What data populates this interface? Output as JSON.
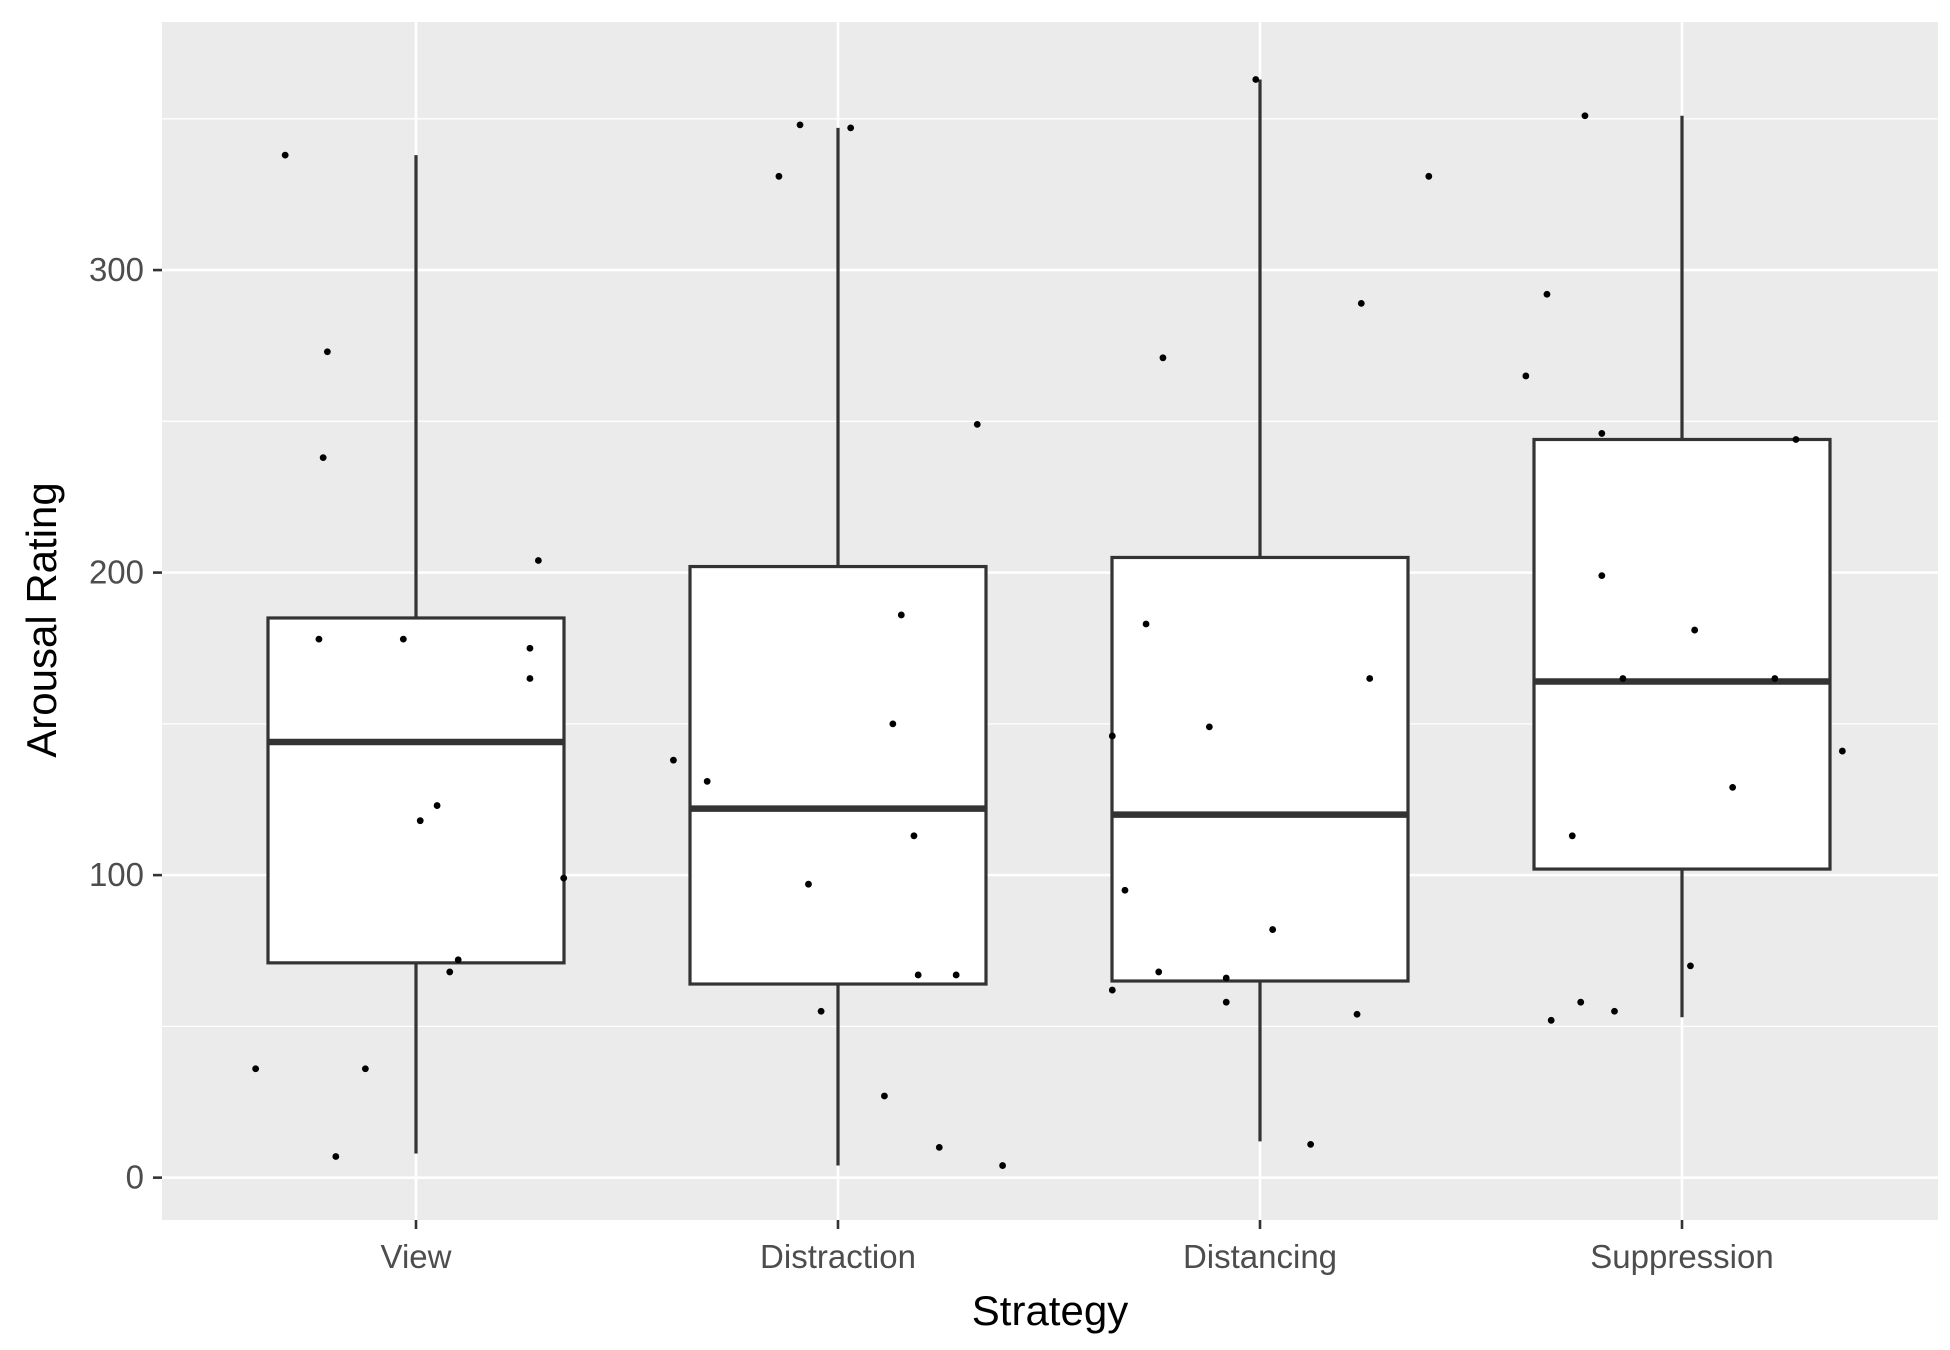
{
  "chart_data": {
    "type": "boxplot",
    "title": "",
    "xlabel": "Strategy",
    "ylabel": "Arousal Rating",
    "ylim": [
      -14,
      382
    ],
    "yticks": [
      0,
      100,
      200,
      300
    ],
    "ytick_labels": [
      "0",
      "100",
      "200",
      "300"
    ],
    "categories": [
      "View",
      "Distraction",
      "Distancing",
      "Suppression"
    ],
    "grid": true,
    "legend": "none",
    "colors": {
      "panel_bg": "#ebebeb",
      "grid": "#ffffff",
      "box_fill": "#ffffff",
      "box_line": "#333333",
      "point": "#000000"
    },
    "boxes": [
      {
        "category": "View",
        "whisker_low": 8,
        "q1": 71,
        "median": 144,
        "q3": 185,
        "whisker_high": 338
      },
      {
        "category": "Distraction",
        "whisker_low": 4,
        "q1": 64,
        "median": 122,
        "q3": 202,
        "whisker_high": 347
      },
      {
        "category": "Distancing",
        "whisker_low": 12,
        "q1": 65,
        "median": 120,
        "q3": 205,
        "whisker_high": 363
      },
      {
        "category": "Suppression",
        "whisker_low": 53,
        "q1": 102,
        "median": 164,
        "q3": 244,
        "whisker_high": 351
      }
    ],
    "points": [
      [
        {
          "j": -0.38,
          "y": 36
        },
        {
          "j": -0.31,
          "y": 338
        },
        {
          "j": -0.23,
          "y": 178
        },
        {
          "j": -0.22,
          "y": 238
        },
        {
          "j": -0.21,
          "y": 273
        },
        {
          "j": -0.19,
          "y": 7
        },
        {
          "j": -0.12,
          "y": 36
        },
        {
          "j": -0.03,
          "y": 178
        },
        {
          "j": 0.01,
          "y": 118
        },
        {
          "j": 0.05,
          "y": 123
        },
        {
          "j": 0.08,
          "y": 68
        },
        {
          "j": 0.1,
          "y": 72
        },
        {
          "j": 0.27,
          "y": 175
        },
        {
          "j": 0.27,
          "y": 165
        },
        {
          "j": 0.29,
          "y": 204
        },
        {
          "j": 0.35,
          "y": 99
        }
      ],
      [
        {
          "j": -0.39,
          "y": 138
        },
        {
          "j": -0.31,
          "y": 131
        },
        {
          "j": -0.14,
          "y": 331
        },
        {
          "j": -0.09,
          "y": 348
        },
        {
          "j": -0.07,
          "y": 97
        },
        {
          "j": -0.04,
          "y": 55
        },
        {
          "j": 0.03,
          "y": 347
        },
        {
          "j": 0.11,
          "y": 27
        },
        {
          "j": 0.13,
          "y": 150
        },
        {
          "j": 0.15,
          "y": 186
        },
        {
          "j": 0.18,
          "y": 113
        },
        {
          "j": 0.19,
          "y": 67
        },
        {
          "j": 0.24,
          "y": 10
        },
        {
          "j": 0.28,
          "y": 67
        },
        {
          "j": 0.33,
          "y": 249
        },
        {
          "j": 0.39,
          "y": 4
        }
      ],
      [
        {
          "j": -0.35,
          "y": 146
        },
        {
          "j": -0.35,
          "y": 62
        },
        {
          "j": -0.32,
          "y": 95
        },
        {
          "j": -0.27,
          "y": 183
        },
        {
          "j": -0.24,
          "y": 68
        },
        {
          "j": -0.23,
          "y": 271
        },
        {
          "j": -0.12,
          "y": 149
        },
        {
          "j": -0.08,
          "y": 58
        },
        {
          "j": -0.08,
          "y": 66
        },
        {
          "j": -0.01,
          "y": 363
        },
        {
          "j": 0.03,
          "y": 82
        },
        {
          "j": 0.12,
          "y": 11
        },
        {
          "j": 0.23,
          "y": 54
        },
        {
          "j": 0.24,
          "y": 289
        },
        {
          "j": 0.26,
          "y": 165
        },
        {
          "j": 0.4,
          "y": 331
        }
      ],
      [
        {
          "j": -0.37,
          "y": 265
        },
        {
          "j": -0.26,
          "y": 113
        },
        {
          "j": -0.32,
          "y": 292
        },
        {
          "j": -0.31,
          "y": 52
        },
        {
          "j": -0.24,
          "y": 58
        },
        {
          "j": -0.23,
          "y": 351
        },
        {
          "j": -0.19,
          "y": 246
        },
        {
          "j": -0.19,
          "y": 199
        },
        {
          "j": -0.16,
          "y": 55
        },
        {
          "j": -0.14,
          "y": 165
        },
        {
          "j": 0.02,
          "y": 70
        },
        {
          "j": 0.03,
          "y": 181
        },
        {
          "j": 0.12,
          "y": 129
        },
        {
          "j": 0.22,
          "y": 165
        },
        {
          "j": 0.27,
          "y": 244
        },
        {
          "j": 0.38,
          "y": 141
        }
      ]
    ]
  }
}
